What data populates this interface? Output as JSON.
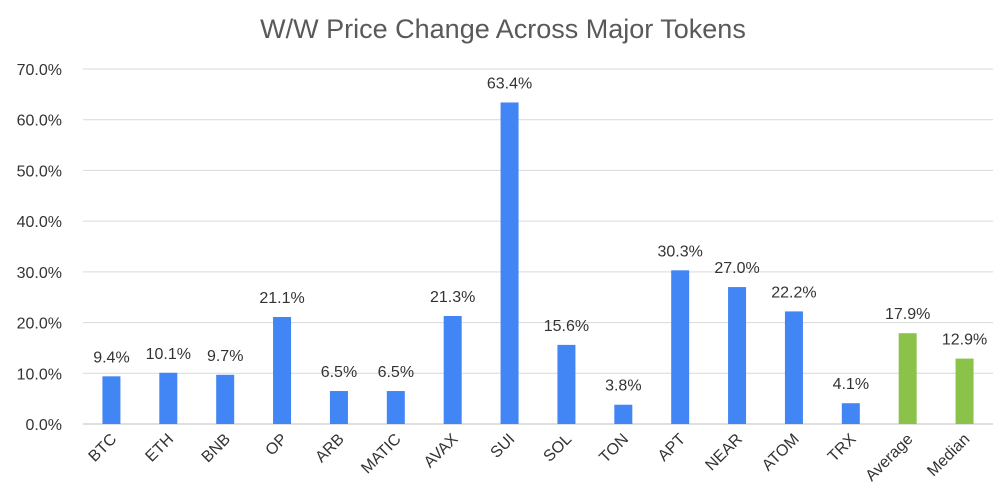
{
  "chart_data": {
    "type": "bar",
    "title": "W/W Price Change Across Major Tokens",
    "xlabel": "",
    "ylabel": "",
    "ylim": [
      0,
      70
    ],
    "y_ticks": [
      "0.0%",
      "10.0%",
      "20.0%",
      "30.0%",
      "40.0%",
      "50.0%",
      "60.0%",
      "70.0%"
    ],
    "y_tick_values": [
      0,
      10,
      20,
      30,
      40,
      50,
      60,
      70
    ],
    "categories": [
      "BTC",
      "ETH",
      "BNB",
      "OP",
      "ARB",
      "MATIC",
      "AVAX",
      "SUI",
      "SOL",
      "TON",
      "APT",
      "NEAR",
      "ATOM",
      "TRX",
      "Average",
      "Median"
    ],
    "values": [
      9.4,
      10.1,
      9.7,
      21.1,
      6.5,
      6.5,
      21.3,
      63.4,
      15.6,
      3.8,
      30.3,
      27.0,
      22.2,
      4.1,
      17.9,
      12.9
    ],
    "data_labels": [
      "9.4%",
      "10.1%",
      "9.7%",
      "21.1%",
      "6.5%",
      "6.5%",
      "21.3%",
      "63.4%",
      "15.6%",
      "3.8%",
      "30.3%",
      "27.0%",
      "22.2%",
      "4.1%",
      "17.9%",
      "12.9%"
    ],
    "bar_colors": [
      "#4285f4",
      "#4285f4",
      "#4285f4",
      "#4285f4",
      "#4285f4",
      "#4285f4",
      "#4285f4",
      "#4285f4",
      "#4285f4",
      "#4285f4",
      "#4285f4",
      "#4285f4",
      "#4285f4",
      "#4285f4",
      "#8bc34a",
      "#8bc34a"
    ],
    "grid": true,
    "legend": "none"
  }
}
